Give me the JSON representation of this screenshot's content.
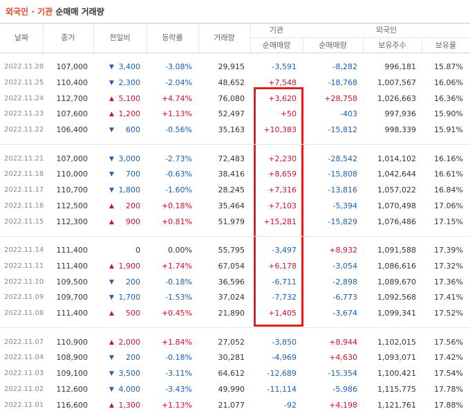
{
  "title": {
    "highlight": "외국인 · 기관",
    "rest": "순매매 거래량"
  },
  "header": {
    "columns": [
      "날짜",
      "종가",
      "전일비",
      "등락률",
      "거래량"
    ],
    "institution": "기관",
    "foreign": "외국인",
    "subcolumns": [
      "순매매량",
      "순매매량",
      "보유주수",
      "보유율"
    ]
  },
  "groups": [
    [
      [
        "2022.11.28",
        "107,000",
        "▼",
        "3,400",
        "-3.08%",
        "29,915",
        "-3,591",
        "-8,282",
        "996,181",
        "15.87%"
      ],
      [
        "2022.11.25",
        "110,400",
        "▼",
        "2,300",
        "-2.04%",
        "48,652",
        "+7,548",
        "-18,768",
        "1,007,567",
        "16.06%"
      ],
      [
        "2022.11.24",
        "112,700",
        "▲",
        "5,100",
        "+4.74%",
        "76,080",
        "+3,620",
        "+28,758",
        "1,026,663",
        "16.36%"
      ],
      [
        "2022.11.23",
        "107,600",
        "▲",
        "1,200",
        "+1.13%",
        "52,497",
        "+50",
        "-403",
        "997,936",
        "15.90%"
      ],
      [
        "2022.11.22",
        "106,400",
        "▼",
        "600",
        "-0.56%",
        "35,163",
        "+10,383",
        "-15,812",
        "998,339",
        "15.91%"
      ]
    ],
    [
      [
        "2022.11.21",
        "107,000",
        "▼",
        "3,000",
        "-2.73%",
        "72,483",
        "+2,230",
        "-28,542",
        "1,014,102",
        "16.16%"
      ],
      [
        "2022.11.18",
        "110,000",
        "▼",
        "700",
        "-0.63%",
        "38,416",
        "+8,659",
        "-15,808",
        "1,042,644",
        "16.61%"
      ],
      [
        "2022.11.17",
        "110,700",
        "▼",
        "1,800",
        "-1.60%",
        "28,245",
        "+7,316",
        "-13,816",
        "1,057,022",
        "16.84%"
      ],
      [
        "2022.11.16",
        "112,500",
        "▲",
        "200",
        "+0.18%",
        "35,464",
        "+7,103",
        "-5,394",
        "1,070,498",
        "17.06%"
      ],
      [
        "2022.11.15",
        "112,300",
        "▲",
        "900",
        "+0.81%",
        "51,979",
        "+15,281",
        "-15,829",
        "1,076,486",
        "17.15%"
      ]
    ],
    [
      [
        "2022.11.14",
        "111,400",
        null,
        "0",
        "0.00%",
        "55,795",
        "-3,497",
        "+8,932",
        "1,091,588",
        "17.39%"
      ],
      [
        "2022.11.11",
        "111,400",
        "▲",
        "1,900",
        "+1.74%",
        "67,054",
        "+6,178",
        "-3,054",
        "1,086,616",
        "17.32%"
      ],
      [
        "2022.11.10",
        "109,500",
        "▼",
        "200",
        "-0.18%",
        "36,596",
        "-6,711",
        "-2,898",
        "1,089,670",
        "17.36%"
      ],
      [
        "2022.11.09",
        "109,700",
        "▼",
        "1,700",
        "-1.53%",
        "37,024",
        "-7,732",
        "-6,773",
        "1,092,568",
        "17.41%"
      ],
      [
        "2022.11.08",
        "111,400",
        "▲",
        "500",
        "+0.45%",
        "21,890",
        "+1,405",
        "-3,674",
        "1,099,341",
        "17.52%"
      ]
    ],
    [
      [
        "2022.11.07",
        "110,900",
        "▲",
        "2,000",
        "+1.84%",
        "27,052",
        "-3,850",
        "+8,944",
        "1,102,015",
        "17.56%"
      ],
      [
        "2022.11.04",
        "108,900",
        "▼",
        "200",
        "-0.18%",
        "30,281",
        "-4,969",
        "+4,630",
        "1,093,071",
        "17.42%"
      ],
      [
        "2022.11.03",
        "109,100",
        "▼",
        "3,500",
        "-3.11%",
        "64,612",
        "-12,689",
        "-15,354",
        "1,100,421",
        "17.54%"
      ],
      [
        "2022.11.02",
        "112,600",
        "▼",
        "4,000",
        "-3.43%",
        "49,990",
        "-11,114",
        "-5,986",
        "1,115,775",
        "17.78%"
      ],
      [
        "2022.11.01",
        "116,600",
        "▲",
        "1,300",
        "+1.13%",
        "21,077",
        "-92",
        "+4,198",
        "1,121,761",
        "17.88%"
      ]
    ]
  ]
}
